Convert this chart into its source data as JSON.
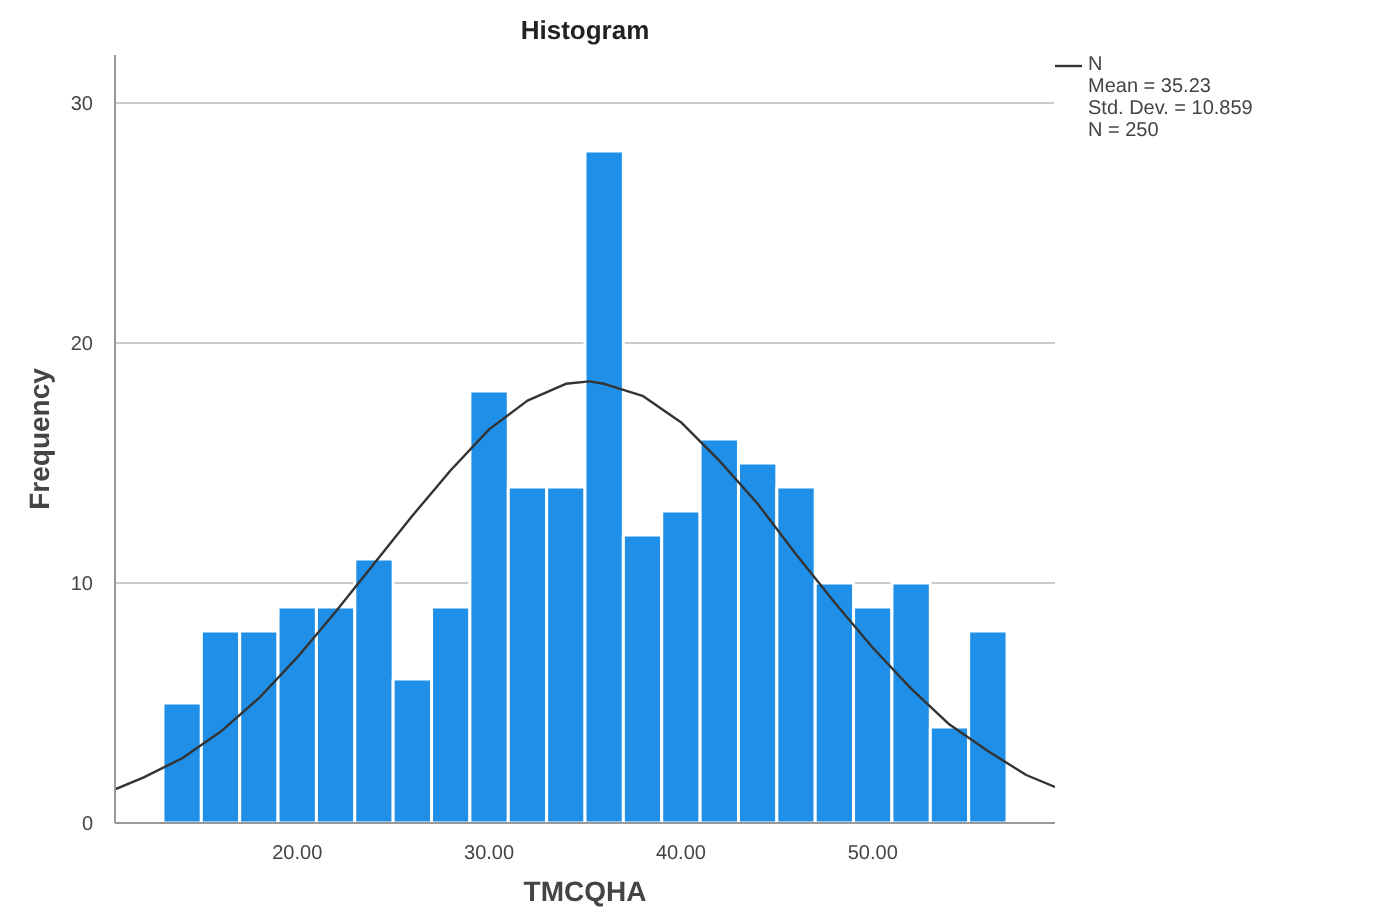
{
  "chart_data": {
    "type": "histogram",
    "title": "Histogram",
    "xlabel": "TMCQHA",
    "ylabel": "Frequency",
    "bins": [
      13,
      15,
      17,
      19,
      21,
      23,
      25,
      27,
      29,
      31,
      33,
      35,
      37,
      39,
      41,
      43,
      45,
      47,
      49,
      51,
      53,
      55,
      57
    ],
    "values": [
      5,
      8,
      8,
      9,
      9,
      11,
      6,
      9,
      18,
      14,
      14,
      28,
      12,
      13,
      16,
      15,
      14,
      10,
      9,
      10,
      4,
      8
    ],
    "color": "#1f8fe8",
    "series": [
      {
        "type": "line",
        "name": "N",
        "color": "#333333",
        "x": [
          10.5,
          12,
          14,
          16,
          18,
          20,
          22,
          24,
          26,
          28,
          30,
          32,
          34,
          35.23,
          36,
          38,
          40,
          42,
          44,
          46,
          48,
          50,
          52,
          54,
          56,
          58,
          59.5
        ],
        "values": [
          1.4,
          1.9,
          2.7,
          3.8,
          5.2,
          6.9,
          8.8,
          10.8,
          12.8,
          14.7,
          16.4,
          17.6,
          18.3,
          18.4,
          18.3,
          17.8,
          16.7,
          15.1,
          13.3,
          11.2,
          9.2,
          7.3,
          5.6,
          4.1,
          3.0,
          2.0,
          1.5
        ]
      }
    ],
    "xlim": [
      10.5,
      59.5
    ],
    "xticks": [
      {
        "value": 20,
        "label": "20.00"
      },
      {
        "value": 30,
        "label": "30.00"
      },
      {
        "value": 40,
        "label": "40.00"
      },
      {
        "value": 50,
        "label": "50.00"
      }
    ],
    "ylim": [
      0,
      32
    ],
    "yticks": [
      0,
      10,
      20,
      30
    ],
    "grid": "y",
    "legend": "top right",
    "annotations": [
      "Mean = 35.23",
      "Std. Dev. = 10.859",
      "N = 250"
    ]
  }
}
